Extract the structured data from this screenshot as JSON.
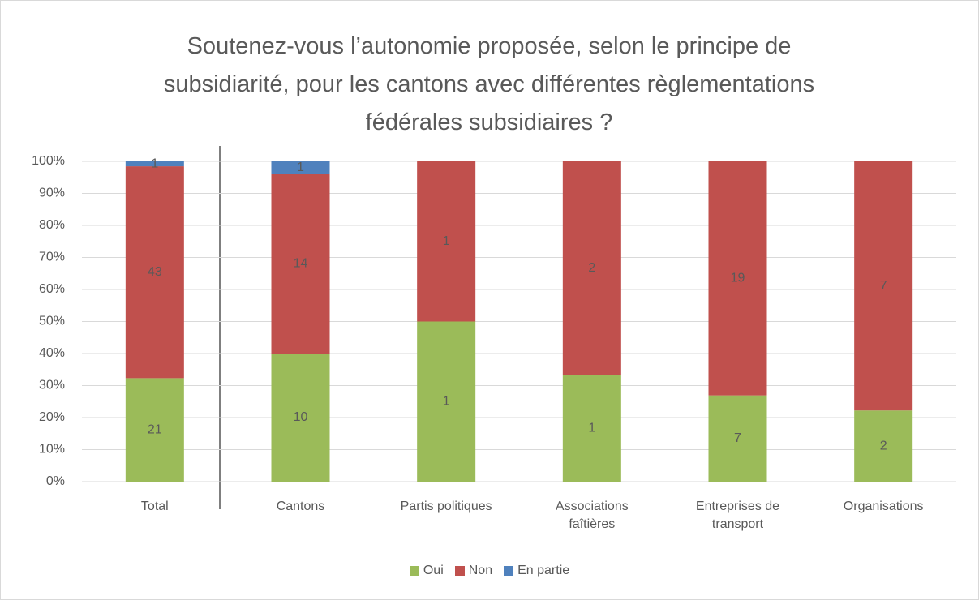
{
  "chart_data": {
    "type": "bar",
    "stacking": "percent",
    "title": "Soutenez-vous l’autonomie proposée, selon le principe de subsidiarité, pour les cantons avec différentes règlementations fédérales subsidiaires ?",
    "categories": [
      "Total",
      "Cantons",
      "Partis politiques",
      "Associations faîtières",
      "Entreprises de transport",
      "Organisations"
    ],
    "series": [
      {
        "name": "Oui",
        "color": "#9bbb59",
        "values": [
          21,
          10,
          1,
          1,
          7,
          2
        ]
      },
      {
        "name": "Non",
        "color": "#c0504d",
        "values": [
          43,
          14,
          1,
          2,
          19,
          7
        ]
      },
      {
        "name": "En partie",
        "color": "#4f81bd",
        "values": [
          1,
          1,
          null,
          null,
          null,
          null
        ]
      }
    ],
    "ylim": [
      0,
      100
    ],
    "yticks": [
      {
        "value": 0,
        "label": "0%"
      },
      {
        "value": 10,
        "label": "10%"
      },
      {
        "value": 20,
        "label": "20%"
      },
      {
        "value": 30,
        "label": "30%"
      },
      {
        "value": 40,
        "label": "40%"
      },
      {
        "value": 50,
        "label": "50%"
      },
      {
        "value": 60,
        "label": "60%"
      },
      {
        "value": 70,
        "label": "70%"
      },
      {
        "value": 80,
        "label": "80%"
      },
      {
        "value": 90,
        "label": "90%"
      },
      {
        "value": 100,
        "label": "100%"
      }
    ],
    "grid": true,
    "legend": "bottom"
  }
}
